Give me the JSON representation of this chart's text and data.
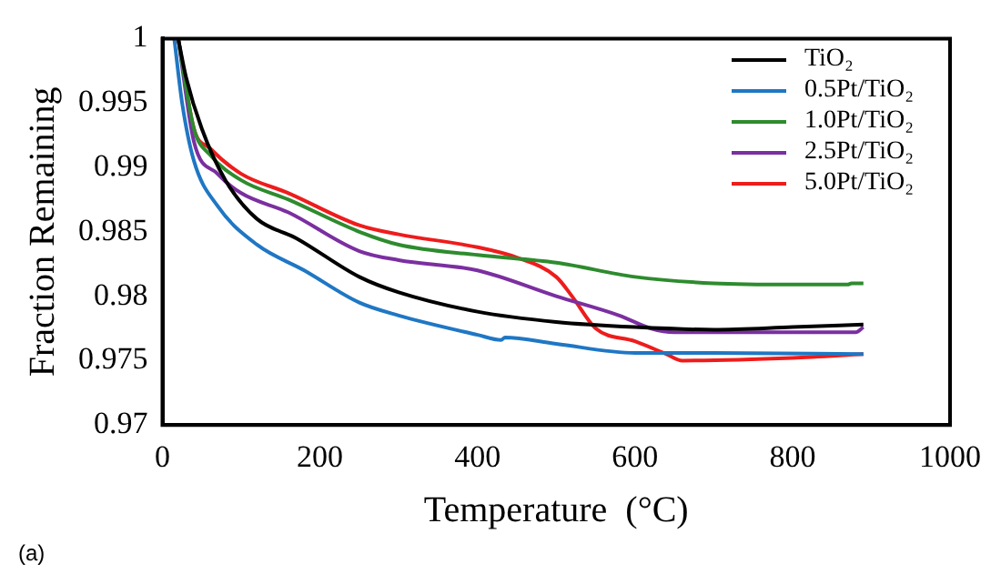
{
  "chart_data": {
    "type": "line",
    "xlabel": "Temperature  (°C)",
    "ylabel": "Fraction Remaining",
    "xlim": [
      0,
      1000
    ],
    "xticks": [
      0,
      200,
      400,
      600,
      800,
      1000
    ],
    "ylim": [
      0.97,
      1
    ],
    "yticks": [
      0.97,
      0.975,
      0.98,
      0.985,
      0.99,
      0.995,
      1
    ],
    "grid": false,
    "legend": "top right",
    "marker": "none",
    "line_style": "solid",
    "annotations": [
      "(a)"
    ],
    "series": [
      {
        "name": "TiO₂",
        "color": "#000000",
        "x": [
          20,
          30,
          50,
          80,
          120,
          170,
          250,
          300,
          400,
          500,
          600,
          700,
          800,
          890
        ],
        "values": [
          1,
          0.997,
          0.993,
          0.989,
          0.986,
          0.9845,
          0.9815,
          0.9803,
          0.9788,
          0.978,
          0.9776,
          0.9774,
          0.9776,
          0.9778
        ]
      },
      {
        "name": "0.5Pt/TiO₂",
        "color": "#1f77c4",
        "x": [
          15,
          25,
          40,
          70,
          120,
          180,
          250,
          300,
          400,
          430,
          435,
          500,
          600,
          700,
          890
        ],
        "values": [
          1,
          0.995,
          0.9905,
          0.987,
          0.984,
          0.982,
          0.9795,
          0.9785,
          0.977,
          0.9766,
          0.9768,
          0.9763,
          0.9756,
          0.9756,
          0.9755
        ]
      },
      {
        "name": "1.0Pt/TiO₂",
        "color": "#2e8b2e",
        "x": [
          20,
          40,
          60,
          100,
          160,
          250,
          300,
          400,
          500,
          600,
          700,
          800,
          870,
          875,
          890
        ],
        "values": [
          1,
          0.993,
          0.991,
          0.989,
          0.9875,
          0.985,
          0.984,
          0.9832,
          0.9826,
          0.9815,
          0.981,
          0.9809,
          0.9809,
          0.981,
          0.981
        ]
      },
      {
        "name": "2.5Pt/TiO₂",
        "color": "#7b2fa0",
        "x": [
          20,
          40,
          70,
          100,
          160,
          250,
          300,
          400,
          500,
          580,
          620,
          650,
          700,
          800,
          880,
          890
        ],
        "values": [
          1,
          0.992,
          0.9895,
          0.988,
          0.9865,
          0.9835,
          0.9828,
          0.982,
          0.98,
          0.9785,
          0.9775,
          0.9772,
          0.9772,
          0.9772,
          0.9772,
          0.9776
        ]
      },
      {
        "name": "5.0Pt/TiO₂",
        "color": "#ee1c1c",
        "x": [
          20,
          40,
          60,
          100,
          160,
          250,
          300,
          400,
          450,
          500,
          520,
          550,
          600,
          640,
          660,
          800,
          890
        ],
        "values": [
          1,
          0.993,
          0.9915,
          0.9895,
          0.988,
          0.9855,
          0.9848,
          0.9838,
          0.983,
          0.9815,
          0.98,
          0.9775,
          0.9765,
          0.9755,
          0.975,
          0.9752,
          0.9755
        ]
      }
    ]
  }
}
